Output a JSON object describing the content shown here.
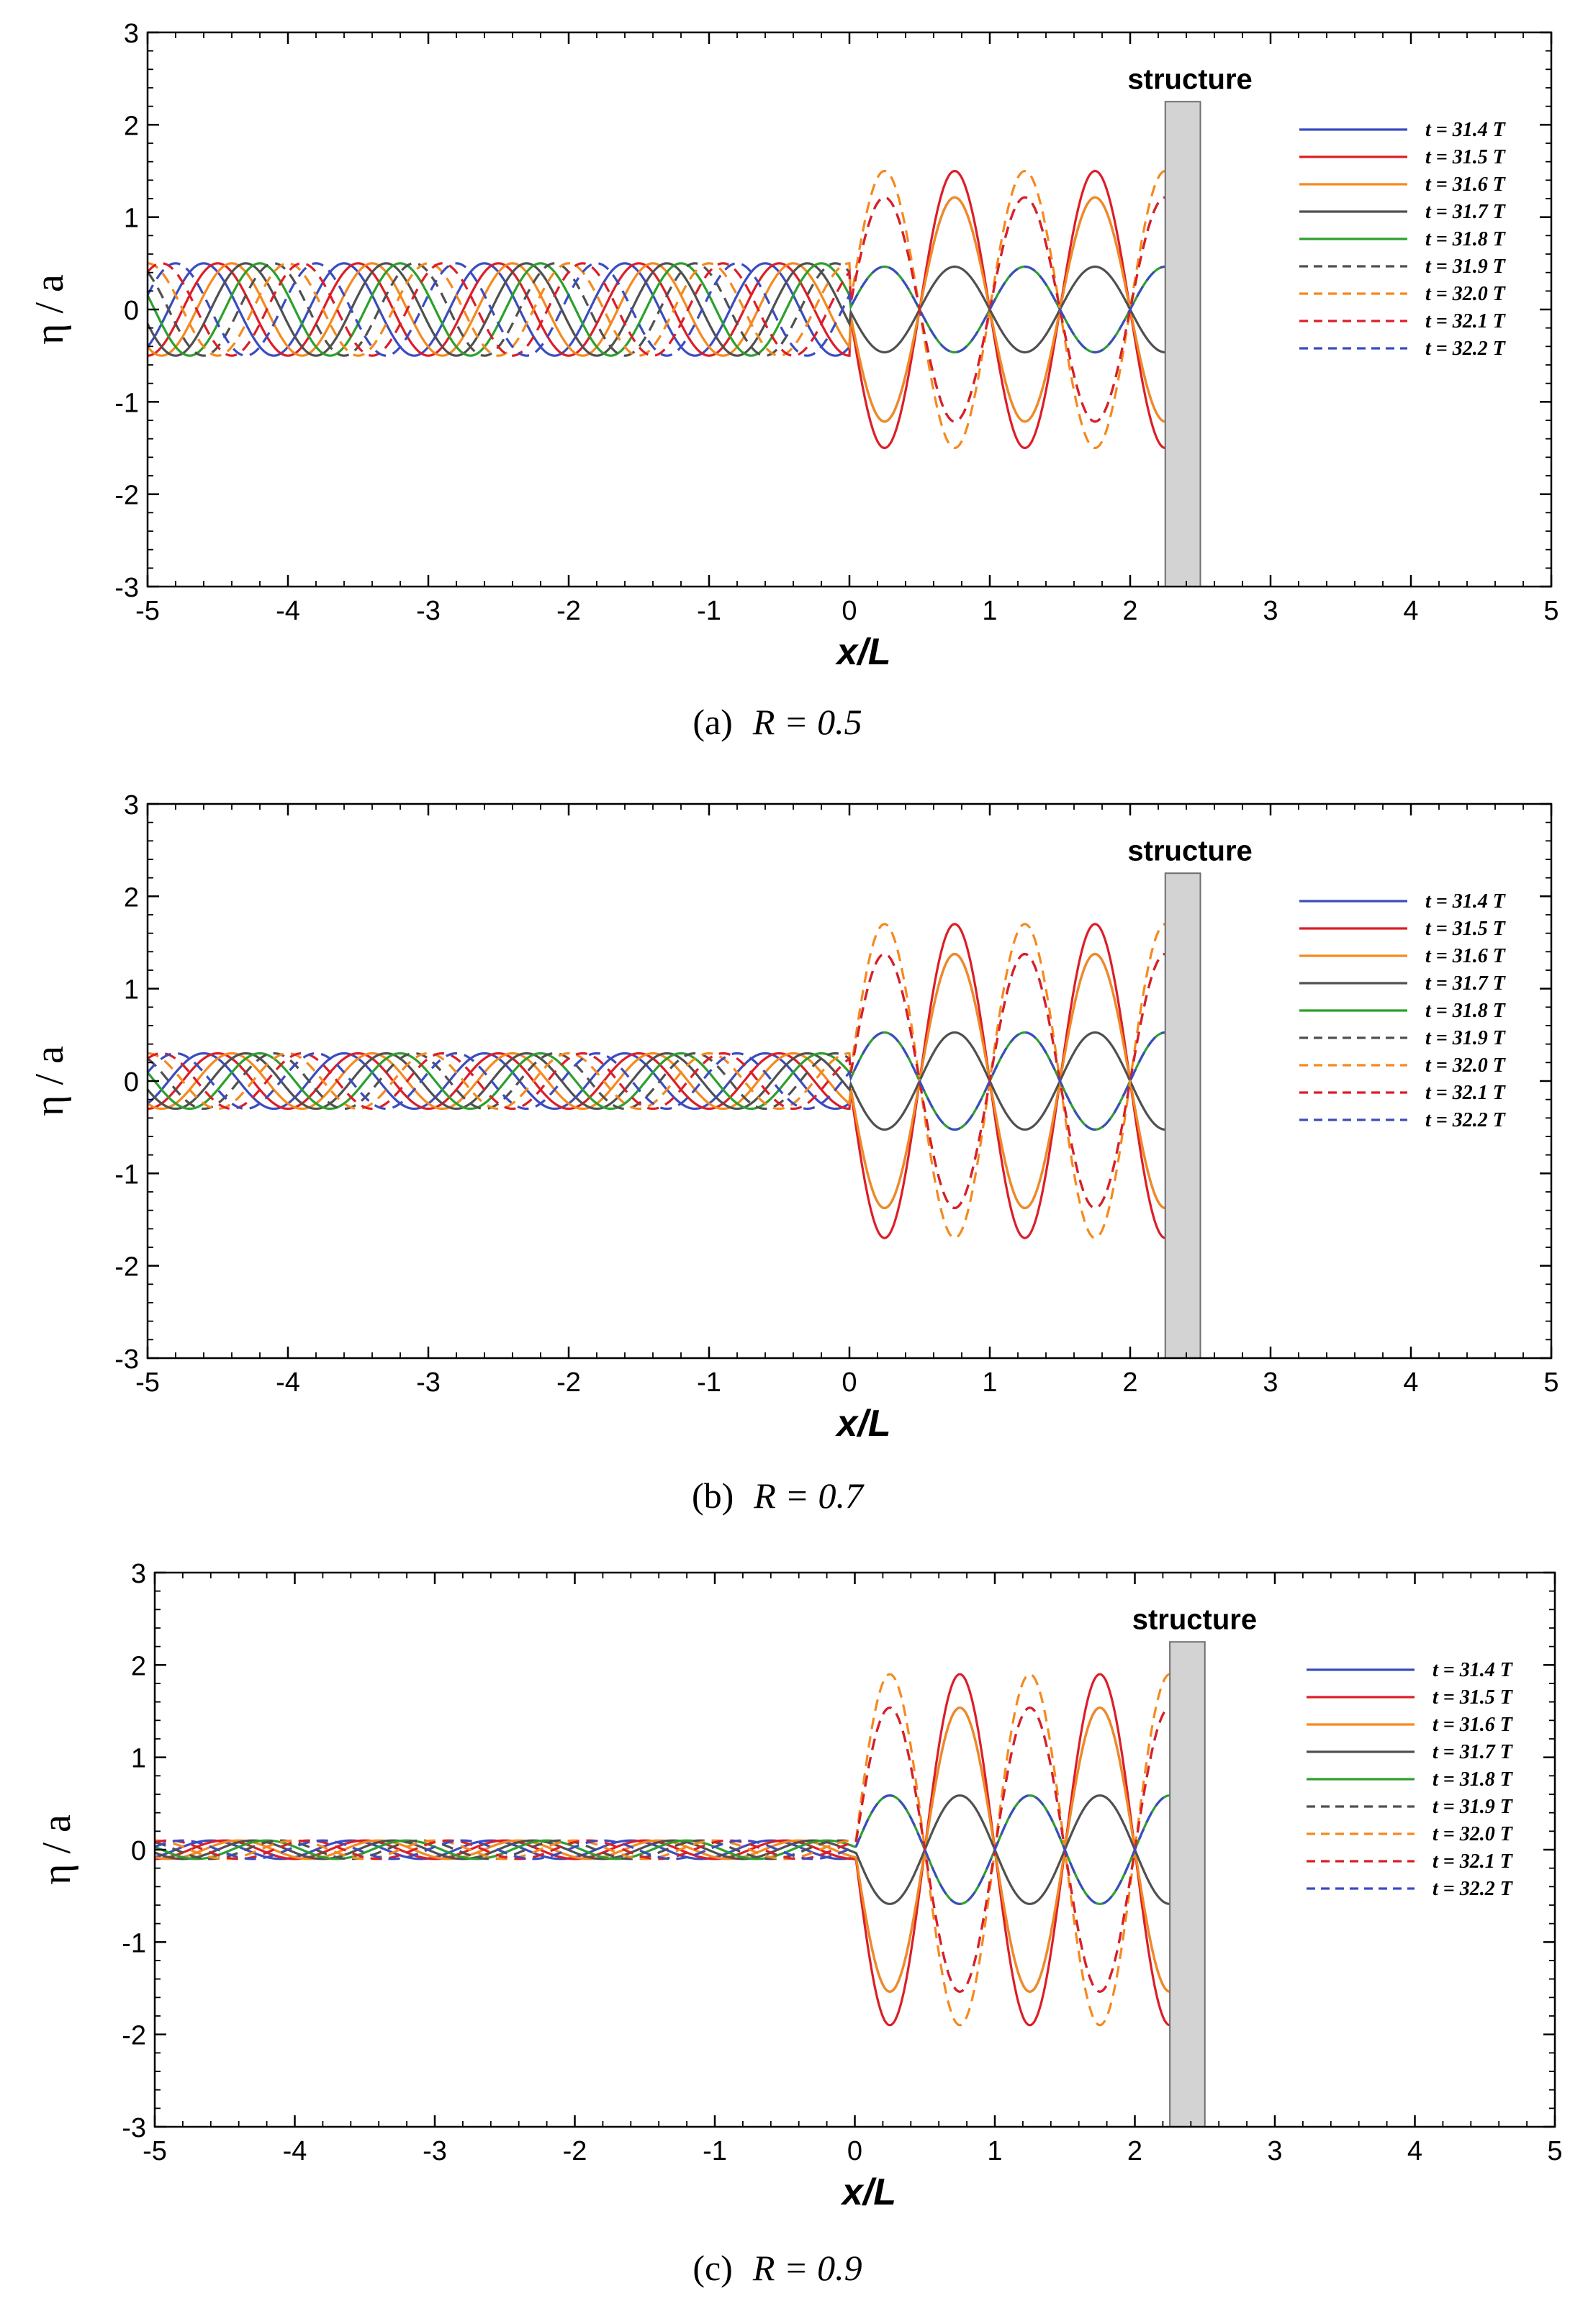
{
  "figure": {
    "captions": [
      {
        "prefix": "(a)",
        "label": "R = 0.5"
      },
      {
        "prefix": "(b)",
        "label": "R = 0.7"
      },
      {
        "prefix": "(c)",
        "label": "R = 0.9"
      }
    ]
  },
  "chart_data": [
    {
      "type": "line",
      "panel": "(a)",
      "caption": "(a)  R = 0.5",
      "R": 0.5,
      "xlabel": "x/L",
      "ylabel": "η / a",
      "xlim": [
        -5,
        5
      ],
      "ylim": [
        -3,
        3
      ],
      "xticks": [
        "-5",
        "-4",
        "-3",
        "-2",
        "-1",
        "0",
        "1",
        "2",
        "3",
        "4",
        "5"
      ],
      "yticks": [
        "3",
        "2",
        "1",
        "0",
        "-1",
        "-2",
        "-3"
      ],
      "grid": false,
      "legend_position": "top-right",
      "structure": {
        "label": "structure",
        "x_start": 2.25,
        "x_end": 2.5,
        "height": 2.25
      },
      "incident_amplitude": 0.5,
      "standing_amplitude": 1.5,
      "wall_x": 2.25,
      "series": [
        {
          "name": "t = 31.4 T",
          "t": 31.4,
          "color": "#3b4cc0",
          "dash": "solid"
        },
        {
          "name": "t = 31.5 T",
          "t": 31.5,
          "color": "#dc1e28",
          "dash": "solid"
        },
        {
          "name": "t = 31.6 T",
          "t": 31.6,
          "color": "#f5891e",
          "dash": "solid"
        },
        {
          "name": "t = 31.7 T",
          "t": 31.7,
          "color": "#505050",
          "dash": "solid"
        },
        {
          "name": "t = 31.8 T",
          "t": 31.8,
          "color": "#2ca02c",
          "dash": "solid"
        },
        {
          "name": "t = 31.9 T",
          "t": 31.9,
          "color": "#505050",
          "dash": "dashed"
        },
        {
          "name": "t = 32.0 T",
          "t": 32.0,
          "color": "#f5891e",
          "dash": "dashed"
        },
        {
          "name": "t = 32.1 T",
          "t": 32.1,
          "color": "#dc1e28",
          "dash": "dashed"
        },
        {
          "name": "t = 32.2 T",
          "t": 32.2,
          "color": "#3b4cc0",
          "dash": "dashed"
        }
      ]
    },
    {
      "type": "line",
      "panel": "(b)",
      "caption": "(b)  R = 0.7",
      "R": 0.7,
      "xlabel": "x/L",
      "ylabel": "η / a",
      "xlim": [
        -5,
        5
      ],
      "ylim": [
        -3,
        3
      ],
      "xticks": [
        "-5",
        "-4",
        "-3",
        "-2",
        "-1",
        "0",
        "1",
        "2",
        "3",
        "4",
        "5"
      ],
      "yticks": [
        "3",
        "2",
        "1",
        "0",
        "-1",
        "-2",
        "-3"
      ],
      "grid": false,
      "legend_position": "top-right",
      "structure": {
        "label": "structure",
        "x_start": 2.25,
        "x_end": 2.5,
        "height": 2.25
      },
      "incident_amplitude": 0.3,
      "standing_amplitude": 1.7,
      "wall_x": 2.25,
      "series": [
        {
          "name": "t = 31.4 T",
          "t": 31.4,
          "color": "#3b4cc0",
          "dash": "solid"
        },
        {
          "name": "t = 31.5 T",
          "t": 31.5,
          "color": "#dc1e28",
          "dash": "solid"
        },
        {
          "name": "t = 31.6 T",
          "t": 31.6,
          "color": "#f5891e",
          "dash": "solid"
        },
        {
          "name": "t = 31.7 T",
          "t": 31.7,
          "color": "#505050",
          "dash": "solid"
        },
        {
          "name": "t = 31.8 T",
          "t": 31.8,
          "color": "#2ca02c",
          "dash": "solid"
        },
        {
          "name": "t = 31.9 T",
          "t": 31.9,
          "color": "#505050",
          "dash": "dashed"
        },
        {
          "name": "t = 32.0 T",
          "t": 32.0,
          "color": "#f5891e",
          "dash": "dashed"
        },
        {
          "name": "t = 32.1 T",
          "t": 32.1,
          "color": "#dc1e28",
          "dash": "dashed"
        },
        {
          "name": "t = 32.2 T",
          "t": 32.2,
          "color": "#3b4cc0",
          "dash": "dashed"
        }
      ]
    },
    {
      "type": "line",
      "panel": "(c)",
      "caption": "(c)  R = 0.9",
      "R": 0.9,
      "xlabel": "x/L",
      "ylabel": "η / a",
      "xlim": [
        -5,
        5
      ],
      "ylim": [
        -3,
        3
      ],
      "xticks": [
        "-5",
        "-4",
        "-3",
        "-2",
        "-1",
        "0",
        "1",
        "2",
        "3",
        "4",
        "5"
      ],
      "yticks": [
        "3",
        "2",
        "1",
        "0",
        "-1",
        "-2",
        "-3"
      ],
      "grid": false,
      "legend_position": "top-right",
      "structure": {
        "label": "structure",
        "x_start": 2.25,
        "x_end": 2.5,
        "height": 2.25
      },
      "incident_amplitude": 0.1,
      "standing_amplitude": 1.9,
      "wall_x": 2.25,
      "series": [
        {
          "name": "t = 31.4 T",
          "t": 31.4,
          "color": "#3b4cc0",
          "dash": "solid"
        },
        {
          "name": "t = 31.5 T",
          "t": 31.5,
          "color": "#dc1e28",
          "dash": "solid"
        },
        {
          "name": "t = 31.6 T",
          "t": 31.6,
          "color": "#f5891e",
          "dash": "solid"
        },
        {
          "name": "t = 31.7 T",
          "t": 31.7,
          "color": "#505050",
          "dash": "solid"
        },
        {
          "name": "t = 31.8 T",
          "t": 31.8,
          "color": "#2ca02c",
          "dash": "solid"
        },
        {
          "name": "t = 31.9 T",
          "t": 31.9,
          "color": "#505050",
          "dash": "dashed"
        },
        {
          "name": "t = 32.0 T",
          "t": 32.0,
          "color": "#f5891e",
          "dash": "dashed"
        },
        {
          "name": "t = 32.1 T",
          "t": 32.1,
          "color": "#dc1e28",
          "dash": "dashed"
        },
        {
          "name": "t = 32.2 T",
          "t": 32.2,
          "color": "#3b4cc0",
          "dash": "dashed"
        }
      ]
    }
  ]
}
